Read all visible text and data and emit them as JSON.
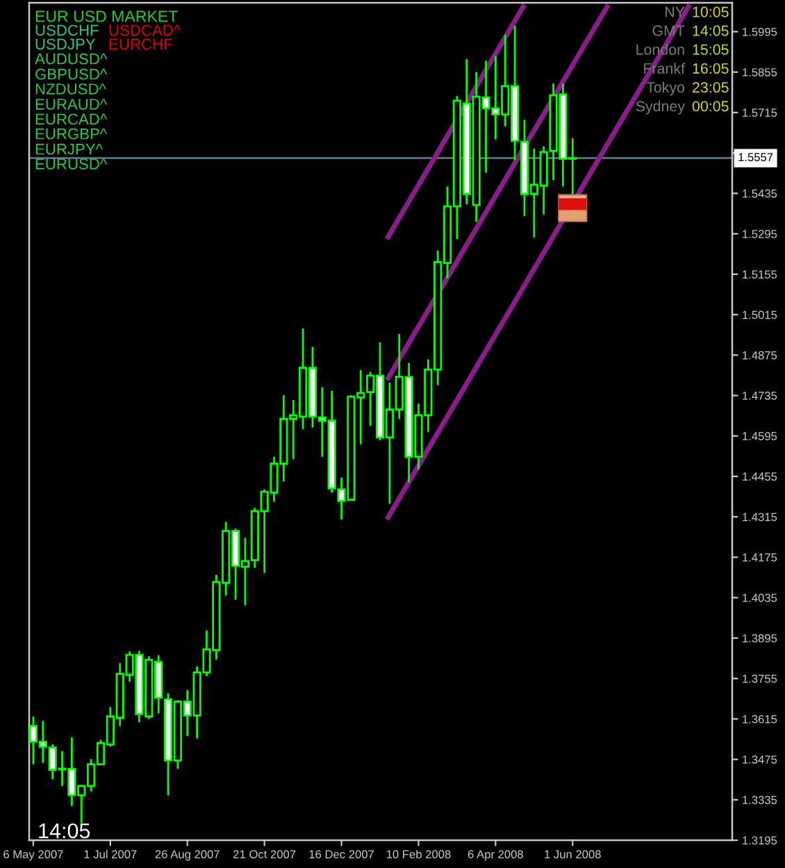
{
  "chart_data": {
    "type": "candlestick",
    "x": [
      "2007-05-06",
      "2007-05-13",
      "2007-05-20",
      "2007-05-27",
      "2007-06-03",
      "2007-06-10",
      "2007-06-17",
      "2007-06-24",
      "2007-07-01",
      "2007-07-08",
      "2007-07-15",
      "2007-07-22",
      "2007-07-29",
      "2007-08-05",
      "2007-08-12",
      "2007-08-19",
      "2007-08-26",
      "2007-09-02",
      "2007-09-09",
      "2007-09-16",
      "2007-09-23",
      "2007-09-30",
      "2007-10-07",
      "2007-10-14",
      "2007-10-21",
      "2007-10-28",
      "2007-11-04",
      "2007-11-11",
      "2007-11-18",
      "2007-11-25",
      "2007-12-02",
      "2007-12-09",
      "2007-12-16",
      "2007-12-23",
      "2007-12-30",
      "2008-01-06",
      "2008-01-13",
      "2008-01-20",
      "2008-01-27",
      "2008-02-03",
      "2008-02-10",
      "2008-02-17",
      "2008-02-24",
      "2008-03-02",
      "2008-03-09",
      "2008-03-16",
      "2008-03-23",
      "2008-03-30",
      "2008-04-06",
      "2008-04-13",
      "2008-04-20",
      "2008-04-27",
      "2008-05-04",
      "2008-05-11",
      "2008-05-18",
      "2008-05-25",
      "2008-06-01"
    ],
    "ohlc": [
      [
        1.3591,
        1.3624,
        1.3458,
        1.3536
      ],
      [
        1.3536,
        1.3608,
        1.3463,
        1.3519
      ],
      [
        1.3516,
        1.3527,
        1.3407,
        1.3439
      ],
      [
        1.3441,
        1.3503,
        1.3383,
        1.3443
      ],
      [
        1.3442,
        1.3551,
        1.3314,
        1.3351
      ],
      [
        1.3351,
        1.3386,
        1.3254,
        1.3383
      ],
      [
        1.3383,
        1.3476,
        1.3364,
        1.3458
      ],
      [
        1.3458,
        1.3543,
        1.3455,
        1.3532
      ],
      [
        1.3527,
        1.3656,
        1.3519,
        1.3624
      ],
      [
        1.3619,
        1.3808,
        1.3591,
        1.3771
      ],
      [
        1.3768,
        1.3849,
        1.3744,
        1.3837
      ],
      [
        1.3837,
        1.3851,
        1.3603,
        1.3632
      ],
      [
        1.3624,
        1.3832,
        1.3615,
        1.382
      ],
      [
        1.3813,
        1.3836,
        1.3635,
        1.3688
      ],
      [
        1.3683,
        1.3704,
        1.3351,
        1.3471
      ],
      [
        1.3471,
        1.368,
        1.3442,
        1.3675
      ],
      [
        1.3675,
        1.3715,
        1.3556,
        1.3627
      ],
      [
        1.3627,
        1.3797,
        1.3548,
        1.3776
      ],
      [
        1.3776,
        1.3921,
        1.3763,
        1.3856
      ],
      [
        1.3853,
        1.4114,
        1.3821,
        1.4089
      ],
      [
        1.4086,
        1.4298,
        1.4043,
        1.4266
      ],
      [
        1.4266,
        1.4274,
        1.4028,
        1.4145
      ],
      [
        1.4142,
        1.4242,
        1.4009,
        1.4162
      ],
      [
        1.4165,
        1.4346,
        1.4138,
        1.4335
      ],
      [
        1.4335,
        1.441,
        1.4121,
        1.4402
      ],
      [
        1.4399,
        1.4523,
        1.4367,
        1.4499
      ],
      [
        1.4499,
        1.4736,
        1.4438,
        1.4654
      ],
      [
        1.4654,
        1.472,
        1.4515,
        1.4667
      ],
      [
        1.4662,
        1.4967,
        1.4619,
        1.4831
      ],
      [
        1.4831,
        1.4903,
        1.4624,
        1.4662
      ],
      [
        1.4659,
        1.4764,
        1.4523,
        1.4648
      ],
      [
        1.4648,
        1.4751,
        1.4399,
        1.4413
      ],
      [
        1.441,
        1.4451,
        1.4306,
        1.437
      ],
      [
        1.4374,
        1.4736,
        1.437,
        1.4731
      ],
      [
        1.4728,
        1.4823,
        1.4566,
        1.4744
      ],
      [
        1.4747,
        1.4817,
        1.463,
        1.4804
      ],
      [
        1.4804,
        1.4919,
        1.458,
        1.459
      ],
      [
        1.459,
        1.478,
        1.4361,
        1.4687
      ],
      [
        1.4687,
        1.4948,
        1.4654,
        1.48
      ],
      [
        1.4799,
        1.4848,
        1.4434,
        1.4523
      ],
      [
        1.4523,
        1.4707,
        1.4479,
        1.4667
      ],
      [
        1.4667,
        1.486,
        1.4609,
        1.4825
      ],
      [
        1.4825,
        1.5237,
        1.4771,
        1.5197
      ],
      [
        1.5194,
        1.5459,
        1.5141,
        1.539
      ],
      [
        1.539,
        1.5772,
        1.5277,
        1.5756
      ],
      [
        1.5746,
        1.59,
        1.5397,
        1.5433
      ],
      [
        1.5395,
        1.5855,
        1.5337,
        1.577
      ],
      [
        1.5767,
        1.5895,
        1.5507,
        1.573
      ],
      [
        1.573,
        1.5911,
        1.5622,
        1.5709
      ],
      [
        1.5708,
        1.5984,
        1.5667,
        1.5807
      ],
      [
        1.5807,
        1.6016,
        1.555,
        1.5617
      ],
      [
        1.5614,
        1.569,
        1.5357,
        1.5433
      ],
      [
        1.5433,
        1.559,
        1.5282,
        1.5465
      ],
      [
        1.5462,
        1.5598,
        1.5362,
        1.5578
      ],
      [
        1.5582,
        1.5815,
        1.5481,
        1.5775
      ],
      [
        1.5778,
        1.5815,
        1.5459,
        1.5555
      ],
      [
        1.5555,
        1.5626,
        1.543,
        1.5557
      ]
    ],
    "color": "#00ff00",
    "colors": [
      "#ffffff",
      "#ffffff",
      "#ffffff",
      "#000000",
      "#ffffff",
      "#000000",
      "#000000",
      "#000000",
      "#000000",
      "#000000",
      "#000000",
      "#ffffff",
      "#000000",
      "#ffffff",
      "#ffffff",
      "#000000",
      "#ffffff",
      "#000000",
      "#000000",
      "#000000",
      "#000000",
      "#ffffff",
      "#000000",
      "#000000",
      "#000000",
      "#000000",
      "#000000",
      "#000000",
      "#000000",
      "#ffffff",
      "#ffffff",
      "#ffffff",
      "#ffffff",
      "#000000",
      "#000000",
      "#000000",
      "#ffffff",
      "#000000",
      "#000000",
      "#ffffff",
      "#000000",
      "#000000",
      "#000000",
      "#000000",
      "#000000",
      "#ffffff",
      "#000000",
      "#ffffff",
      "#ffffff",
      "#000000",
      "#ffffff",
      "#ffffff",
      "#000000",
      "#000000",
      "#000000",
      "#ffffff",
      "#000000"
    ],
    "series": [
      {
        "type": "line",
        "x": [
          "2008-01-18",
          "2008-04-27"
        ],
        "values": [
          1.5277,
          1.6089
        ],
        "color": "#8b1c8b"
      },
      {
        "type": "line",
        "x": [
          "2008-01-18",
          "2008-06-27"
        ],
        "values": [
          1.4788,
          1.6089
        ],
        "color": "#8b1c8b"
      },
      {
        "type": "line",
        "x": [
          "2008-01-18",
          "2008-08-25"
        ],
        "values": [
          1.4306,
          1.6089
        ],
        "color": "#8b1c8b"
      }
    ],
    "xlim": [
      "2007-05-03",
      "2008-09-25"
    ],
    "xticks": [
      {
        "value": "2007-05-06",
        "label": "6 May 2007"
      },
      {
        "value": "2007-07-01",
        "label": "1 Jul 2007"
      },
      {
        "value": "2007-08-26",
        "label": "26 Aug 2007"
      },
      {
        "value": "2007-10-21",
        "label": "21 Oct 2007"
      },
      {
        "value": "2007-12-16",
        "label": "16 Dec 2007"
      },
      {
        "value": "2008-02-10",
        "label": "10 Feb 2008"
      },
      {
        "value": "2008-04-06",
        "label": "6 Apr 2008"
      },
      {
        "value": "2008-06-01",
        "label": "1 Jun 2008"
      }
    ],
    "ylim": [
      1.3195,
      1.6095
    ],
    "yticks": [
      1.3195,
      1.3335,
      1.3475,
      1.3615,
      1.3755,
      1.3895,
      1.4035,
      1.4175,
      1.4315,
      1.4455,
      1.4595,
      1.4735,
      1.4875,
      1.5015,
      1.5155,
      1.5295,
      1.5435,
      {
        "value": 1.5575,
        "label": null
      },
      1.5715,
      1.5855,
      1.5995
    ],
    "ref_lines": [
      {
        "axis": "y",
        "value": 1.5557,
        "label": "1.5557",
        "color": "#5a7684"
      }
    ],
    "annotations": [
      "EUR USD MARKET",
      "USDCHF",
      "USDCAD^",
      "USDJPY",
      "EURCHF",
      "AUDUSD^",
      "GBPUSD^",
      "NZDUSD^",
      "EURAUD^",
      "EURCAD^",
      "EURGBP^",
      "EURJPY^",
      "EURUSD^",
      "NY",
      "10:05",
      "GMT",
      "14:05",
      "London",
      "15:05",
      "Frankf",
      "16:05",
      "Tokyo",
      "23:05",
      "Sydney",
      "00:05",
      "14:05"
    ]
  }
}
